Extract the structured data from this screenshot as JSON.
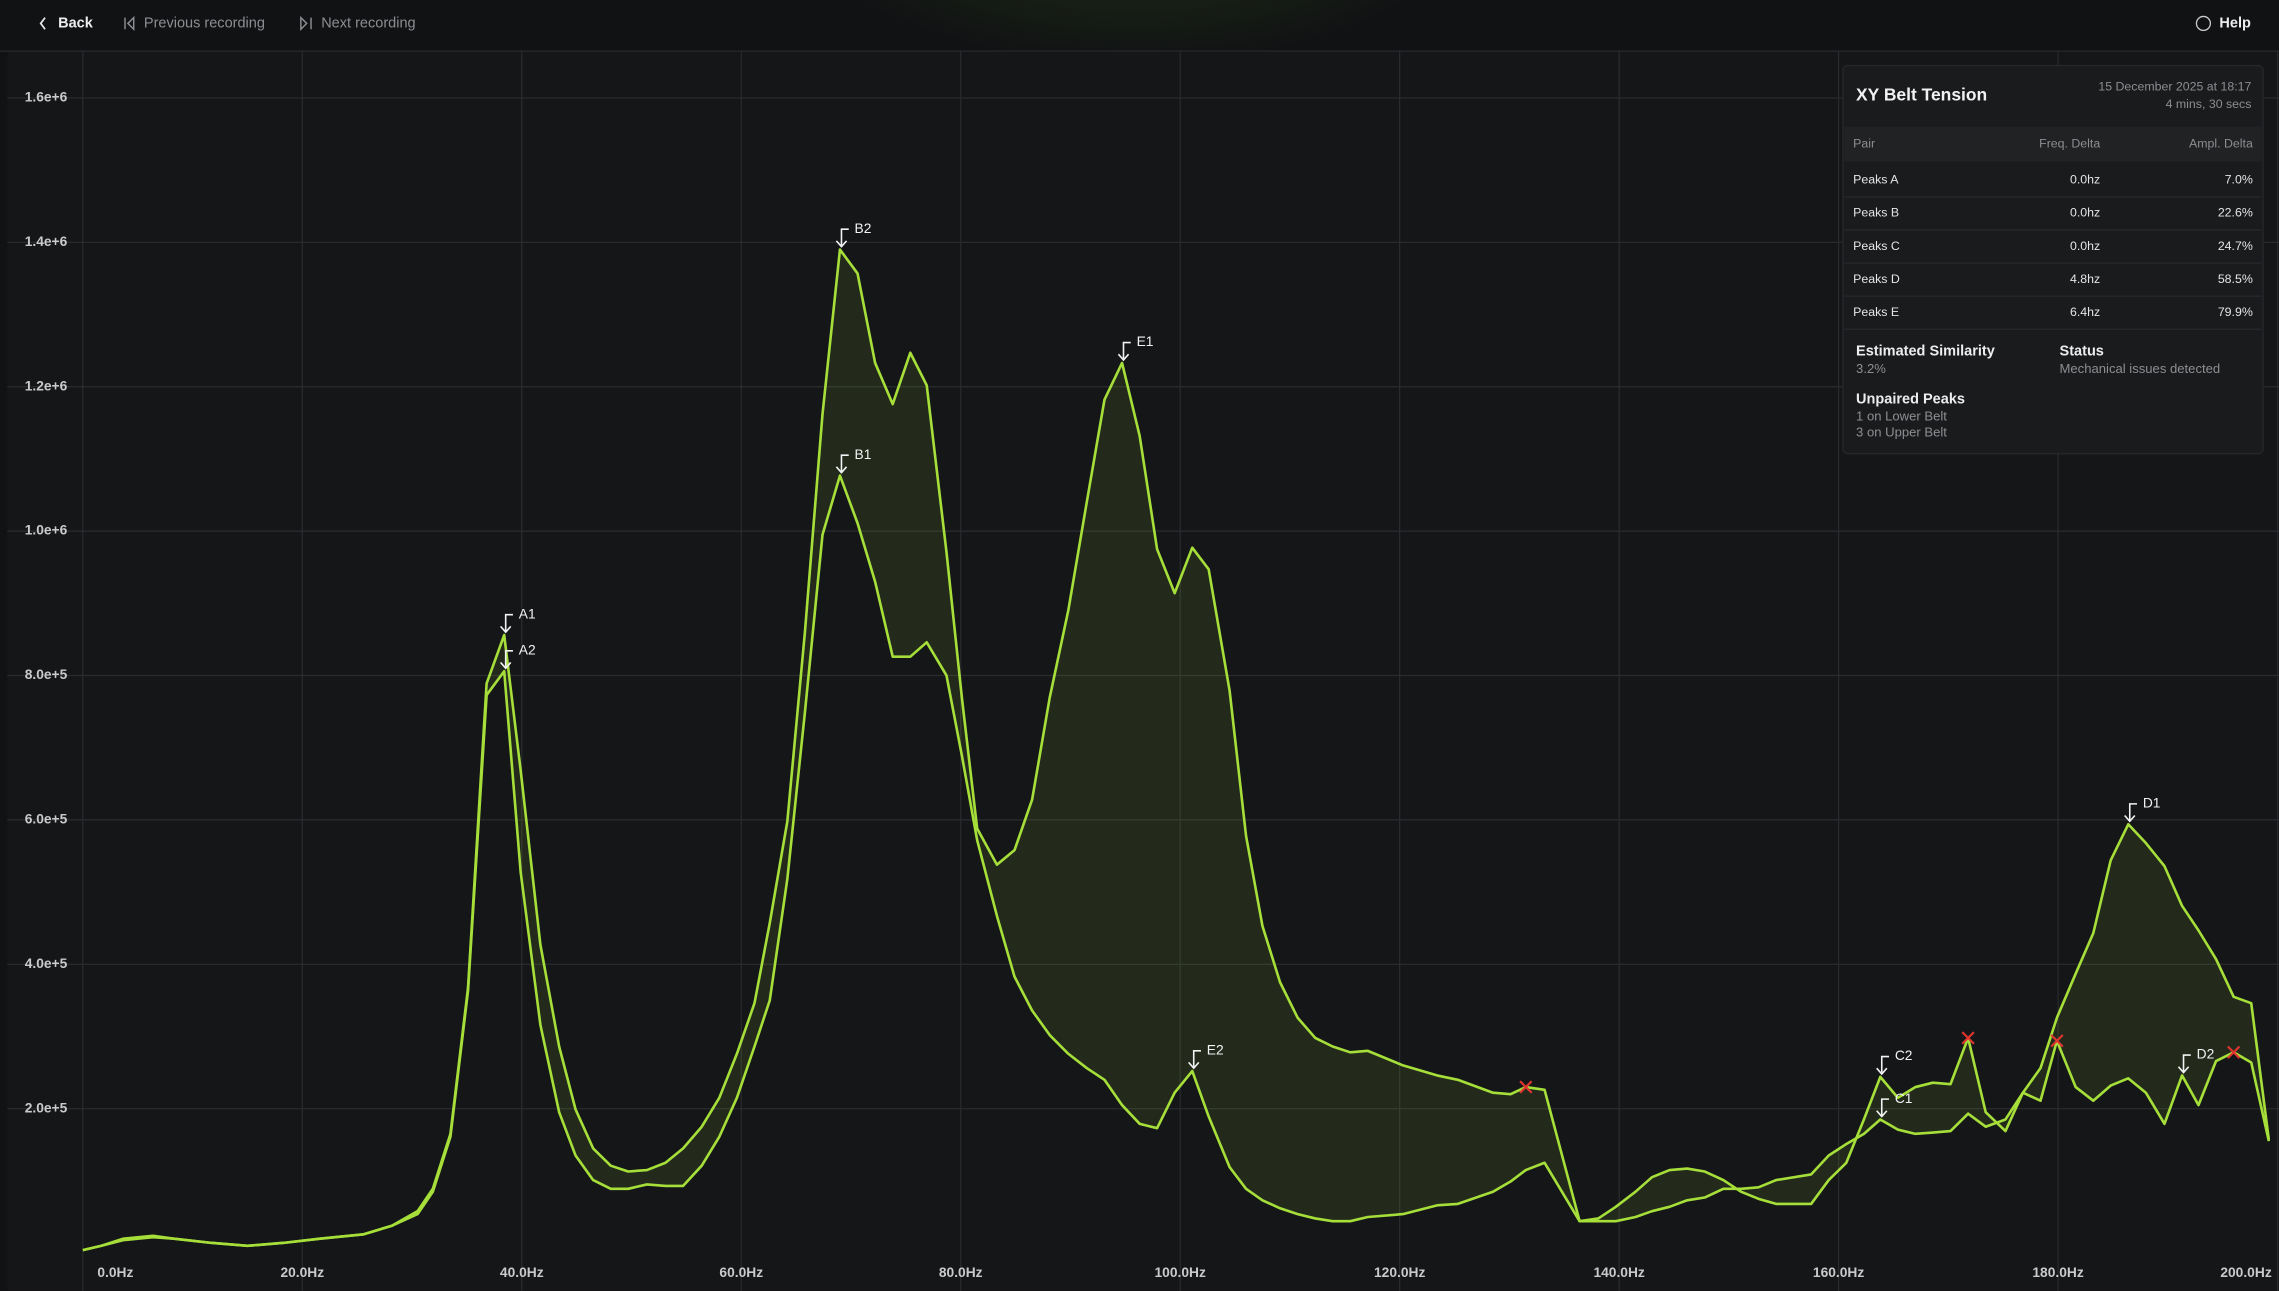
{
  "nav": {
    "back": "Back",
    "previous": "Previous recording",
    "next": "Next recording",
    "help": "Help"
  },
  "panel": {
    "title": "XY Belt Tension",
    "date": "15 December 2025 at 18:17",
    "duration": "4 mins, 30 secs",
    "table": {
      "header": [
        "Pair",
        "Freq. Delta",
        "Ampl. Delta"
      ],
      "rows": [
        [
          "Peaks A",
          "0.0hz",
          "7.0%"
        ],
        [
          "Peaks B",
          "0.0hz",
          "22.6%"
        ],
        [
          "Peaks C",
          "0.0hz",
          "24.7%"
        ],
        [
          "Peaks D",
          "4.8hz",
          "58.5%"
        ],
        [
          "Peaks E",
          "6.4hz",
          "79.9%"
        ]
      ]
    },
    "similarity": {
      "label": "Estimated Similarity",
      "value": "3.2%"
    },
    "status": {
      "label": "Status",
      "value": "Mechanical issues detected"
    },
    "unpaired": {
      "label": "Unpaired Peaks",
      "lines": [
        "1 on Lower Belt",
        "3 on Upper Belt"
      ]
    }
  },
  "chart_data": {
    "type": "line",
    "grid": true,
    "xlim": [
      0,
      200
    ],
    "ylim": [
      0,
      1665000
    ],
    "xticks": [
      {
        "value": 0,
        "label": "0.0Hz"
      },
      {
        "value": 20,
        "label": "20.0Hz"
      },
      {
        "value": 40,
        "label": "40.0Hz"
      },
      {
        "value": 60,
        "label": "60.0Hz"
      },
      {
        "value": 80,
        "label": "80.0Hz"
      },
      {
        "value": 100,
        "label": "100.0Hz"
      },
      {
        "value": 120,
        "label": "120.0Hz"
      },
      {
        "value": 140,
        "label": "140.0Hz"
      },
      {
        "value": 160,
        "label": "160.0Hz"
      },
      {
        "value": 180,
        "label": "180.0Hz"
      },
      {
        "value": 200,
        "label": "200.0Hz"
      }
    ],
    "yticks": [
      {
        "value": 200000,
        "label": "2.0e+5"
      },
      {
        "value": 400000,
        "label": "4.0e+5"
      },
      {
        "value": 600000,
        "label": "6.0e+5"
      },
      {
        "value": 800000,
        "label": "8.0e+5"
      },
      {
        "value": 1000000,
        "label": "1.0e+6"
      },
      {
        "value": 1200000,
        "label": "1.2e+6"
      },
      {
        "value": 1400000,
        "label": "1.4e+6"
      },
      {
        "value": 1600000,
        "label": "1.6e+6"
      }
    ],
    "x": [
      0,
      1.7,
      3.7,
      6.4,
      8.3,
      11.7,
      15.0,
      18.3,
      21.6,
      25.6,
      28.2,
      30.5,
      31.9,
      33.5,
      35.1,
      36.8,
      38.4,
      39.9,
      41.7,
      43.4,
      44.9,
      46.5,
      48.1,
      49.7,
      51.4,
      53.1,
      54.7,
      56.4,
      58.0,
      59.6,
      61.2,
      62.6,
      64.2,
      65.8,
      67.4,
      69.0,
      70.6,
      72.2,
      73.8,
      75.4,
      76.9,
      78.7,
      80.1,
      81.5,
      83.3,
      84.9,
      86.5,
      88.1,
      89.8,
      91.5,
      93.1,
      94.7,
      96.3,
      97.9,
      99.5,
      101.1,
      102.6,
      104.5,
      106.0,
      107.5,
      109.1,
      110.7,
      112.3,
      113.9,
      115.5,
      117.1,
      120.3,
      123.4,
      125.3,
      128.5,
      130.1,
      131.5,
      133.2,
      136.4,
      138.1,
      139.7,
      141.5,
      143.0,
      144.6,
      146.2,
      147.8,
      149.5,
      151.1,
      152.7,
      154.3,
      157.5,
      159.1,
      160.7,
      162.3,
      163.8,
      165.4,
      167.0,
      168.6,
      170.2,
      171.8,
      173.4,
      175.2,
      176.8,
      178.4,
      179.9,
      181.6,
      183.2,
      184.8,
      186.4,
      188.0,
      189.7,
      191.3,
      192.8,
      194.4,
      196.0,
      197.6,
      199.2
    ],
    "series": [
      {
        "color": "#a6df3a",
        "values": [
          4000,
          10000,
          20000,
          24000,
          20000,
          14000,
          10000,
          14000,
          20000,
          26000,
          38000,
          58000,
          89000,
          165000,
          367000,
          789000,
          856000,
          669000,
          427000,
          286000,
          199000,
          145000,
          121000,
          113000,
          115000,
          125000,
          145000,
          175000,
          215000,
          276000,
          346000,
          457000,
          598000,
          860000,
          1162000,
          1390000,
          1357000,
          1233000,
          1176000,
          1247000,
          1202000,
          971000,
          769000,
          588000,
          538000,
          558000,
          628000,
          769000,
          890000,
          1041000,
          1182000,
          1233000,
          1132000,
          975000,
          914000,
          977000,
          947000,
          779000,
          578000,
          453000,
          375000,
          326000,
          298000,
          286000,
          278000,
          280000,
          260000,
          246000,
          240000,
          222000,
          220000,
          230000,
          226000,
          44000,
          48000,
          64000,
          85000,
          105000,
          115000,
          117000,
          113000,
          101000,
          85000,
          75000,
          68000,
          68000,
          101000,
          125000,
          185000,
          244000,
          215000,
          230000,
          236000,
          234000,
          298000,
          195000,
          169000,
          222000,
          211000,
          294000,
          230000,
          211000,
          232000,
          242000,
          222000,
          179000,
          246000,
          205000,
          266000,
          278000,
          264000,
          155000
        ]
      },
      {
        "color": "#a6df3a",
        "values": [
          4000,
          10000,
          18000,
          22000,
          20000,
          14000,
          10000,
          14000,
          20000,
          26000,
          38000,
          54000,
          85000,
          161000,
          363000,
          773000,
          806000,
          528000,
          316000,
          195000,
          135000,
          101000,
          89000,
          89000,
          95000,
          93000,
          93000,
          121000,
          161000,
          215000,
          286000,
          350000,
          518000,
          749000,
          995000,
          1077000,
          1011000,
          930000,
          826000,
          826000,
          846000,
          800000,
          689000,
          572000,
          467000,
          383000,
          336000,
          302000,
          276000,
          256000,
          240000,
          205000,
          179000,
          173000,
          222000,
          252000,
          189000,
          119000,
          89000,
          73000,
          62000,
          54000,
          48000,
          44000,
          44000,
          50000,
          54000,
          66000,
          68000,
          85000,
          99000,
          115000,
          125000,
          44000,
          44000,
          44000,
          50000,
          58000,
          64000,
          73000,
          77000,
          89000,
          89000,
          91000,
          101000,
          109000,
          135000,
          151000,
          165000,
          185000,
          171000,
          165000,
          167000,
          169000,
          193000,
          175000,
          185000,
          222000,
          256000,
          326000,
          387000,
          443000,
          544000,
          594000,
          568000,
          536000,
          481000,
          447000,
          407000,
          355000,
          346000,
          157000
        ]
      }
    ],
    "annotations": [
      {
        "text": "A1",
        "x": 38.4,
        "y": 856000
      },
      {
        "text": "A2",
        "x": 38.4,
        "y": 806000
      },
      {
        "text": "B2",
        "x": 69.0,
        "y": 1390000
      },
      {
        "text": "B1",
        "x": 69.0,
        "y": 1077000
      },
      {
        "text": "E1",
        "x": 94.7,
        "y": 1233000
      },
      {
        "text": "E2",
        "x": 101.1,
        "y": 252000
      },
      {
        "text": "C2",
        "x": 163.8,
        "y": 244000
      },
      {
        "text": "C1",
        "x": 163.8,
        "y": 185000
      },
      {
        "text": "D1",
        "x": 186.4,
        "y": 594000
      },
      {
        "text": "D2",
        "x": 191.3,
        "y": 246000
      }
    ],
    "unpaired": [
      {
        "x": 131.5,
        "y": 230000
      },
      {
        "x": 171.8,
        "y": 298000
      },
      {
        "x": 179.9,
        "y": 294000
      },
      {
        "x": 196.0,
        "y": 278000
      }
    ],
    "unpaired_color": "#e0352f"
  }
}
